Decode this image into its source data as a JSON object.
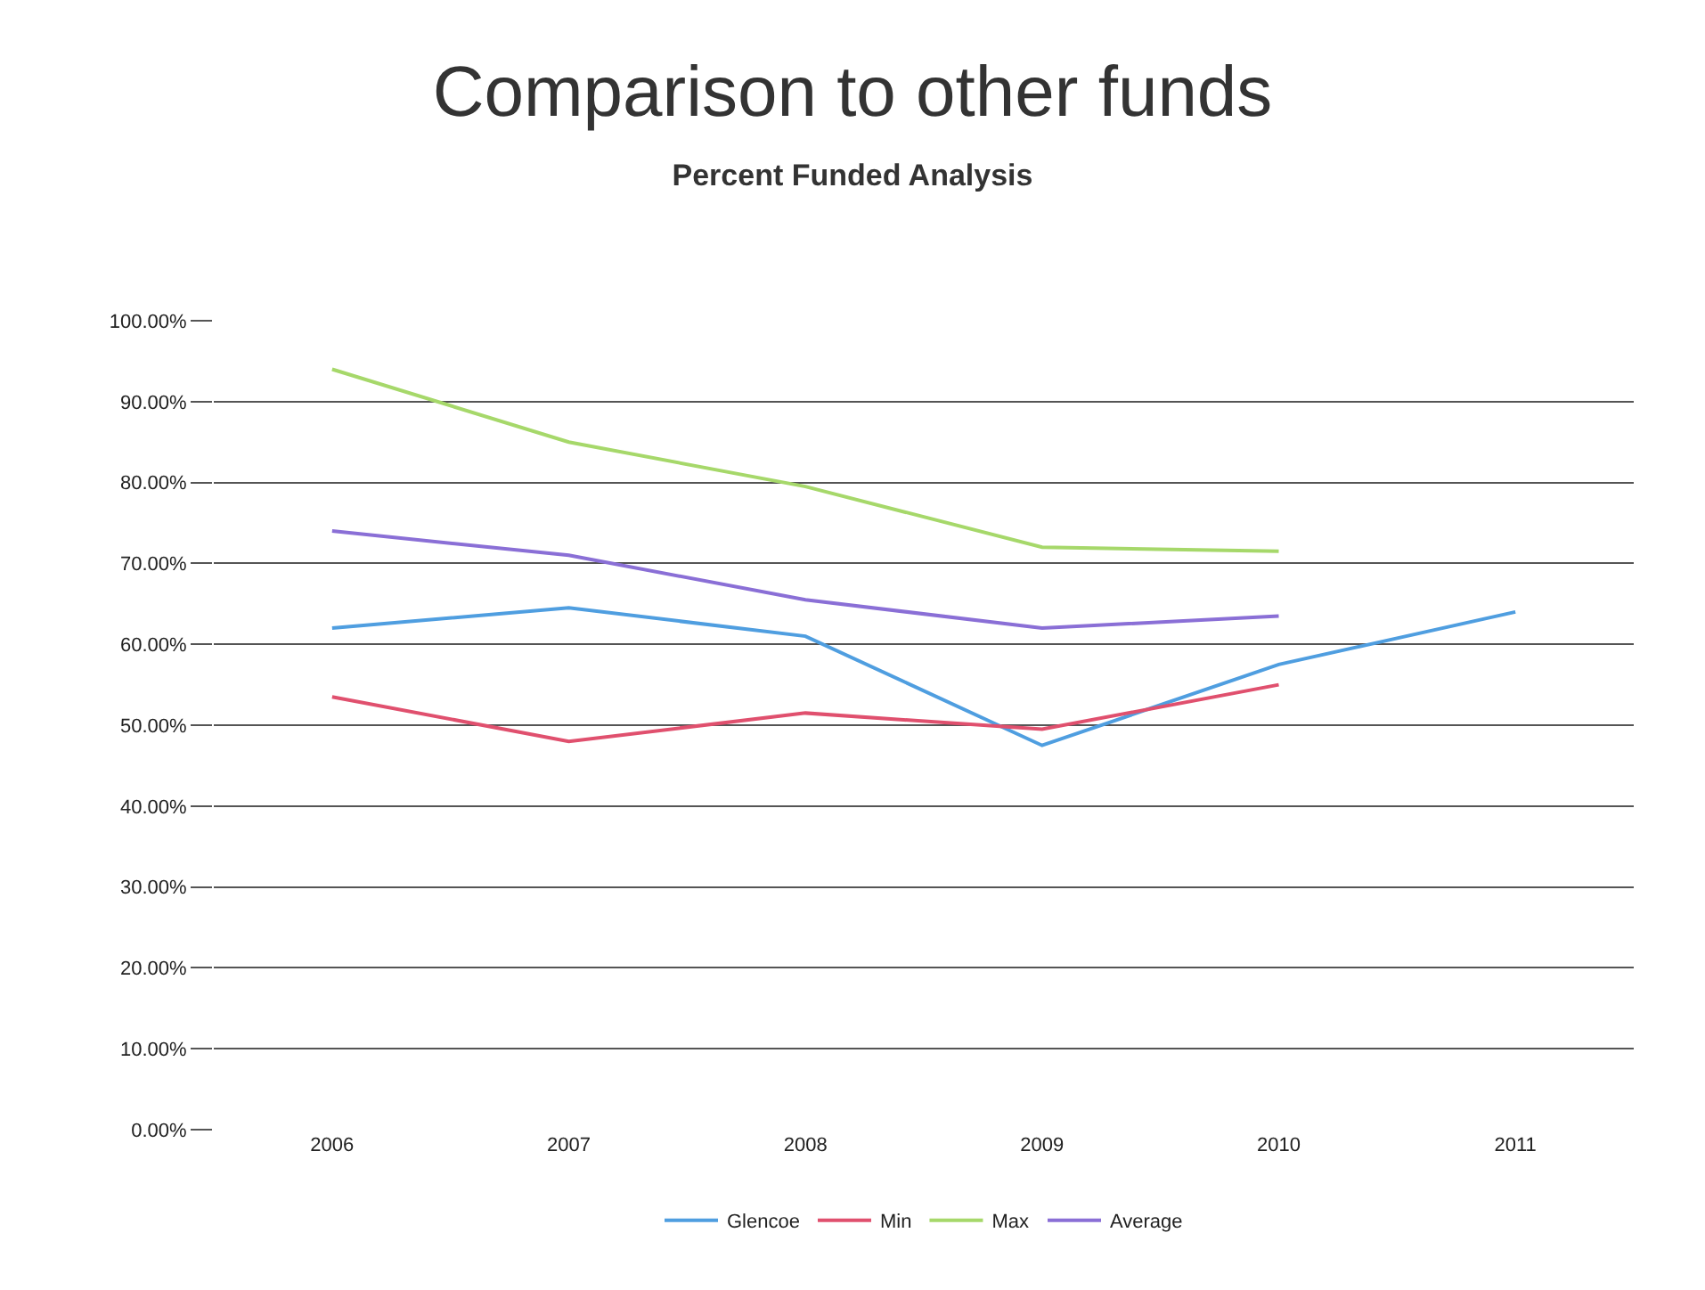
{
  "chart_data": {
    "type": "line",
    "title": "Comparison to other funds",
    "subtitle": "Percent Funded Analysis",
    "categories": [
      "2006",
      "2007",
      "2008",
      "2009",
      "2010",
      "2011"
    ],
    "series": [
      {
        "name": "Glencoe",
        "color": "#4f9ee0",
        "values": [
          62,
          64.5,
          61,
          47.5,
          57.5,
          64
        ]
      },
      {
        "name": "Min",
        "color": "#e0506e",
        "values": [
          53.5,
          48,
          51.5,
          49.5,
          55,
          null
        ]
      },
      {
        "name": "Max",
        "color": "#a6d86a",
        "values": [
          94,
          85,
          79.5,
          72,
          71.5,
          null
        ]
      },
      {
        "name": "Average",
        "color": "#8a6fd6",
        "values": [
          74,
          71,
          65.5,
          62,
          63.5,
          null
        ]
      }
    ],
    "ylim": [
      0,
      100
    ],
    "yticks": [
      {
        "value": 0,
        "label": "0.00%"
      },
      {
        "value": 10,
        "label": "10.00%"
      },
      {
        "value": 20,
        "label": "20.00%"
      },
      {
        "value": 30,
        "label": "30.00%"
      },
      {
        "value": 40,
        "label": "40.00%"
      },
      {
        "value": 50,
        "label": "50.00%"
      },
      {
        "value": 60,
        "label": "60.00%"
      },
      {
        "value": 70,
        "label": "70.00%"
      },
      {
        "value": 80,
        "label": "80.00%"
      },
      {
        "value": 90,
        "label": "90.00%"
      },
      {
        "value": 100,
        "label": "100.00%"
      }
    ],
    "grid": "y",
    "legend": "bottom",
    "marker": "none",
    "line_style": "solid"
  }
}
